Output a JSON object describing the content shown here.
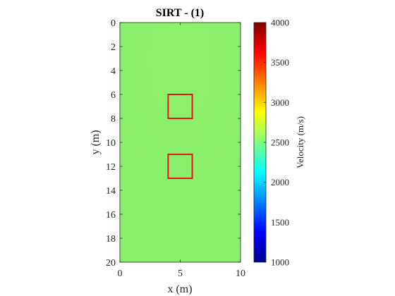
{
  "chart_data": {
    "type": "heatmap",
    "title": "SIRT - (1)",
    "xlabel": "x (m)",
    "ylabel": "y (m)",
    "xlim": [
      0,
      10
    ],
    "ylim": [
      0,
      20
    ],
    "y_reversed": true,
    "xticks": [
      0,
      5,
      10
    ],
    "yticks": [
      0,
      2,
      4,
      6,
      8,
      10,
      12,
      14,
      16,
      18,
      20
    ],
    "field": {
      "description": "near-uniform velocity field",
      "base_value": 2600,
      "upper_center_value": 2550
    },
    "colorbar": {
      "label": "Velocity (m/s)",
      "limits": [
        1000,
        4000
      ],
      "ticks": [
        1000,
        1500,
        2000,
        2500,
        3000,
        3500,
        4000
      ],
      "colormap": "jet"
    },
    "annotations": [
      {
        "type": "rectangle",
        "x": [
          4,
          6
        ],
        "y": [
          6,
          8
        ],
        "color": "#e8141c"
      },
      {
        "type": "rectangle",
        "x": [
          4,
          6
        ],
        "y": [
          11,
          13
        ],
        "color": "#e8141c"
      }
    ]
  }
}
